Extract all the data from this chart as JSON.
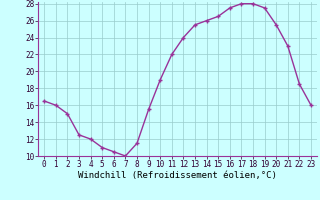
{
  "x": [
    0,
    1,
    2,
    3,
    4,
    5,
    6,
    7,
    8,
    9,
    10,
    11,
    12,
    13,
    14,
    15,
    16,
    17,
    18,
    19,
    20,
    21,
    22,
    23
  ],
  "y": [
    16.5,
    16.0,
    15.0,
    12.5,
    12.0,
    11.0,
    10.5,
    10.0,
    11.5,
    15.5,
    19.0,
    22.0,
    24.0,
    25.5,
    26.0,
    26.5,
    27.5,
    28.0,
    28.0,
    27.5,
    25.5,
    23.0,
    18.5,
    16.0
  ],
  "line_color": "#993399",
  "marker": "+",
  "marker_color": "#993399",
  "bg_color": "#ccffff",
  "grid_color": "#99cccc",
  "xlabel": "Windchill (Refroidissement éolien,°C)",
  "xlim_min": -0.5,
  "xlim_max": 23.5,
  "ylim_min": 10,
  "ylim_max": 28,
  "yticks": [
    10,
    12,
    14,
    16,
    18,
    20,
    22,
    24,
    26,
    28
  ],
  "xticks": [
    0,
    1,
    2,
    3,
    4,
    5,
    6,
    7,
    8,
    9,
    10,
    11,
    12,
    13,
    14,
    15,
    16,
    17,
    18,
    19,
    20,
    21,
    22,
    23
  ],
  "xlabel_fontsize": 6.5,
  "tick_fontsize": 5.5,
  "line_width": 1.0,
  "marker_size": 3.5
}
